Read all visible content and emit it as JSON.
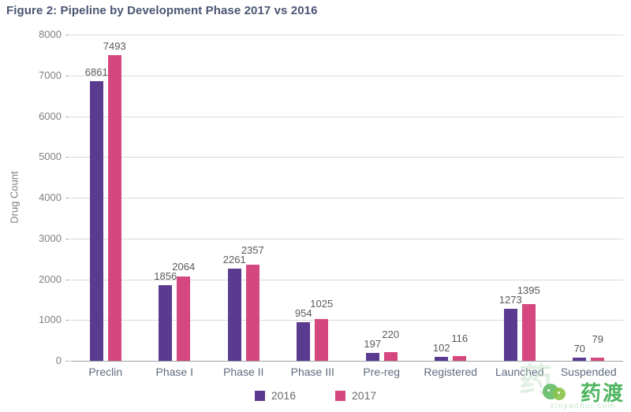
{
  "title": "Figure 2: Pipeline by Development Phase 2017 vs 2016",
  "colors": {
    "series_2016": "#5b3b8f",
    "series_2017": "#d5487f",
    "title_text": "#4a5572",
    "gridline": "#d9d9d9",
    "axis_line": "#9aa0a6",
    "value_label": "#595959",
    "axis_tick_label": "#808080",
    "category_label": "#5e6c7e",
    "watermark_green": "#3fae50"
  },
  "chart_data": {
    "type": "bar",
    "title": "Figure 2: Pipeline by Development Phase 2017 vs 2016",
    "xlabel": "",
    "ylabel": "Drug Count",
    "ylim": [
      0,
      8000
    ],
    "ytick_step": 1000,
    "ytick_labels": [
      "0",
      "1000",
      "2000",
      "3000",
      "4000",
      "5000",
      "6000",
      "7000",
      "8000"
    ],
    "grid": true,
    "legend_position": "bottom",
    "categories": [
      "Preclin",
      "Phase I",
      "Phase II",
      "Phase III",
      "Pre-reg",
      "Registered",
      "Launched",
      "Suspended"
    ],
    "series": [
      {
        "name": "2016",
        "color": "#5b3b8f",
        "values": [
          6861,
          1856,
          2261,
          954,
          197,
          102,
          1273,
          70
        ]
      },
      {
        "name": "2017",
        "color": "#d5487f",
        "values": [
          7493,
          2064,
          2357,
          1025,
          220,
          116,
          1395,
          79
        ]
      }
    ]
  },
  "watermark": {
    "brand_text": "药渡",
    "sub_text": "xinyaohui.com",
    "ghost_glyph": "药"
  }
}
